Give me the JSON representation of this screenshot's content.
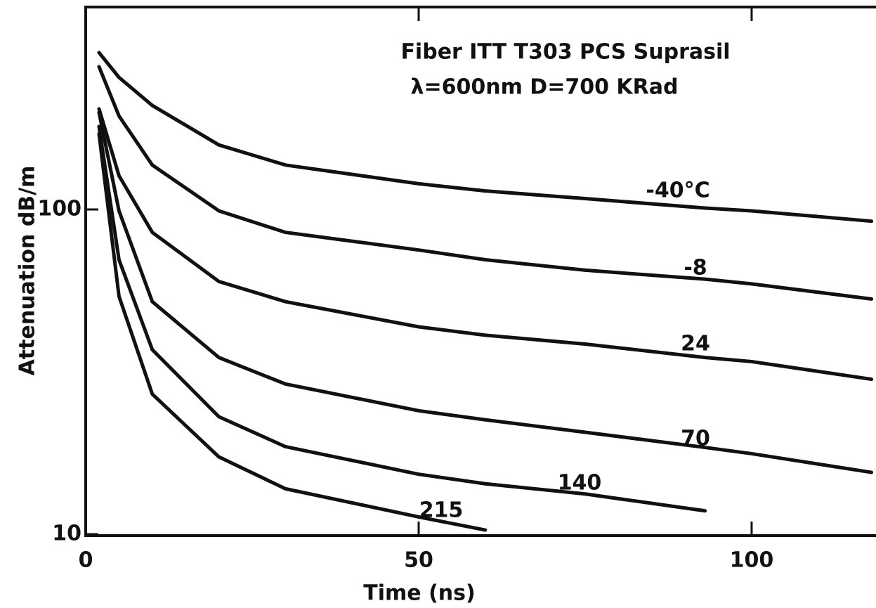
{
  "chart_data": {
    "type": "line",
    "title": "Fiber ITT T303 PCS Suprasil",
    "subtitle": "λ=600nm D=700 KRad",
    "xlabel": "Time (ns)",
    "ylabel": "Attenuation dB/m",
    "log_y": true,
    "color": "#111111",
    "x": [
      2,
      5,
      10,
      20,
      30,
      50,
      60,
      75,
      93,
      100,
      118
    ],
    "series": [
      {
        "name": "-40°C",
        "color": "#111111",
        "values": [
          304,
          255,
          209,
          158,
          137,
          120,
          114,
          108,
          101,
          99,
          92
        ]
      },
      {
        "name": "-8",
        "color": "#111111",
        "values": [
          275,
          194,
          137,
          99,
          85,
          75,
          70,
          65,
          61,
          59,
          53
        ]
      },
      {
        "name": "24",
        "color": "#111111",
        "values": [
          204,
          127,
          85,
          60,
          52,
          43.5,
          41,
          38.5,
          35,
          34,
          30
        ]
      },
      {
        "name": "70",
        "color": "#111111",
        "values": [
          199,
          99,
          52,
          35,
          29,
          24,
          22.5,
          20.6,
          18.5,
          17.7,
          15.5
        ]
      },
      {
        "name": "140",
        "color": "#111111",
        "values": [
          180,
          70,
          37,
          23,
          18.6,
          15.3,
          14.3,
          13.3,
          11.8,
          null,
          null
        ]
      },
      {
        "name": "215",
        "color": "#111111",
        "values": [
          171,
          54,
          27,
          17.3,
          13.8,
          11.3,
          10.3,
          null,
          null,
          null,
          null
        ]
      }
    ],
    "xlim": [
      0,
      118
    ],
    "xticks": [
      0,
      50,
      100
    ],
    "ylim": [
      10,
      420
    ],
    "yticks": [
      10,
      100
    ]
  }
}
